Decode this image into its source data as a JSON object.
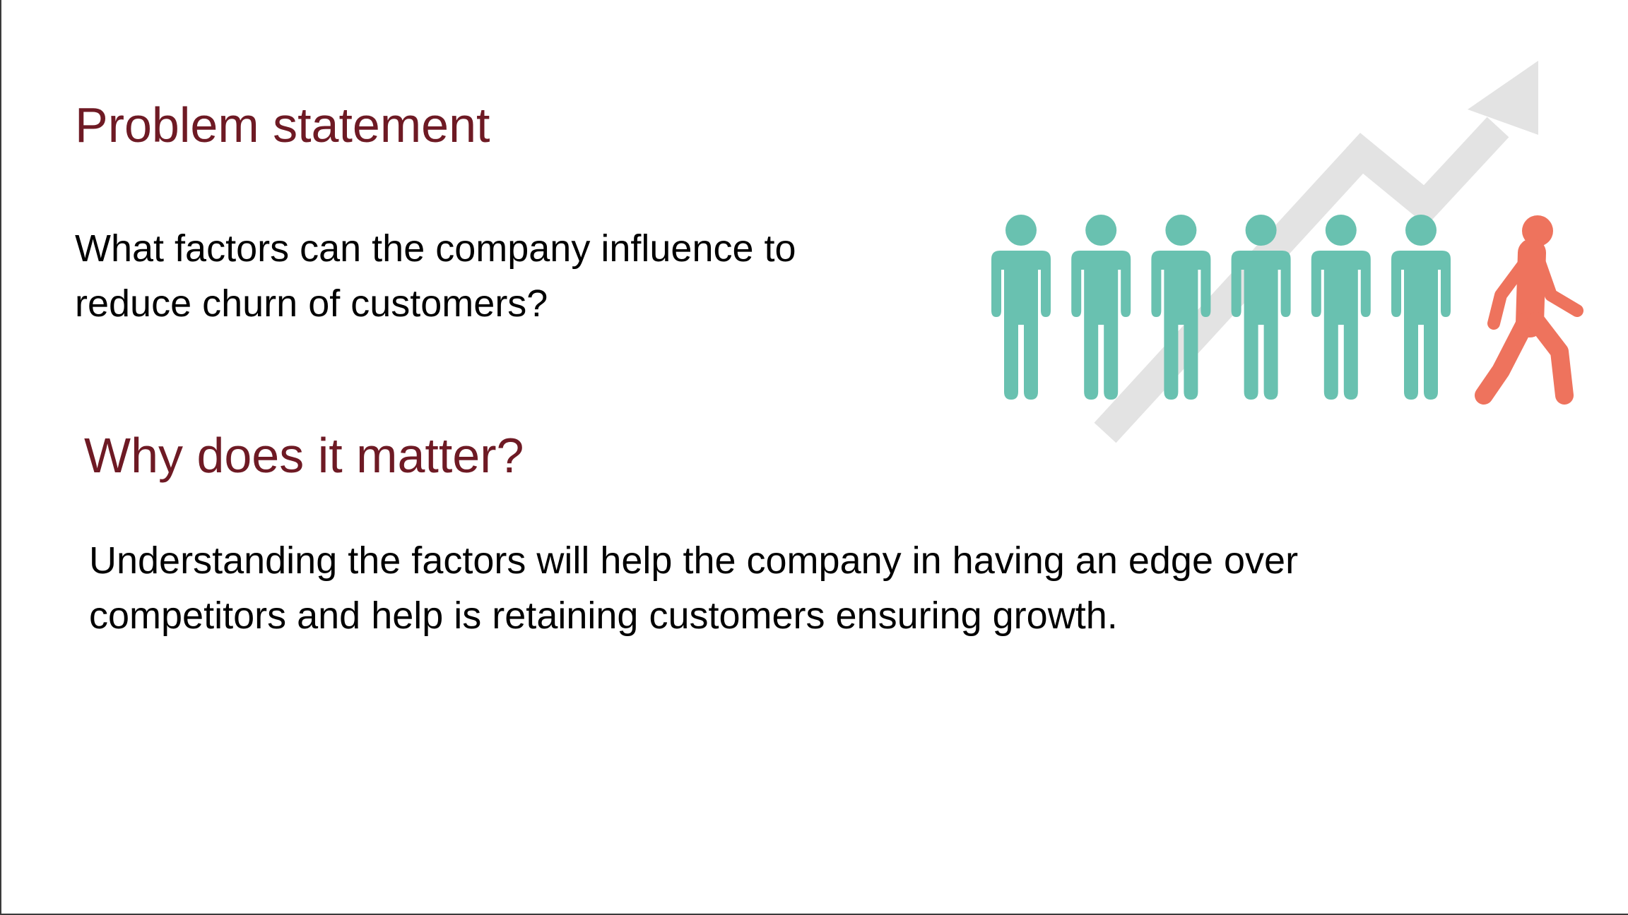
{
  "slide": {
    "problem_heading": "Problem statement",
    "problem_text": "What factors can the company influence to reduce churn of customers?",
    "why_heading": "Why does it matter?",
    "why_text": "Understanding the factors will help the company in having an edge over competitors and help is retaining customers ensuring growth."
  },
  "illustration": {
    "icon": "customer-churn-icon",
    "arrow_icon": "growth-arrow-icon",
    "staying_customers": 6,
    "leaving_customers": 1,
    "colors": {
      "heading": "#6e1a24",
      "text": "#000000",
      "staying_person": "#69c1b0",
      "leaving_person": "#ee735d",
      "arrow": "#e3e3e3"
    }
  }
}
